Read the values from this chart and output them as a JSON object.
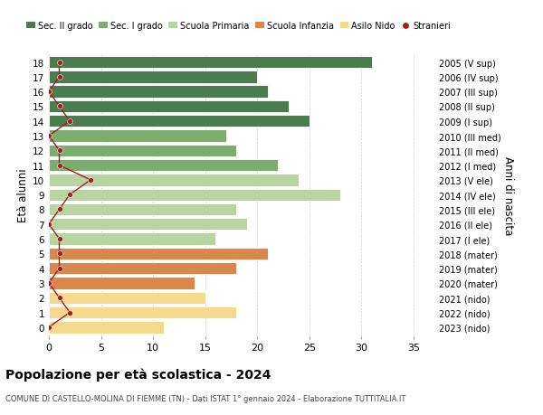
{
  "ages": [
    18,
    17,
    16,
    15,
    14,
    13,
    12,
    11,
    10,
    9,
    8,
    7,
    6,
    5,
    4,
    3,
    2,
    1,
    0
  ],
  "bar_values": [
    31,
    20,
    21,
    23,
    25,
    17,
    18,
    22,
    24,
    28,
    18,
    19,
    16,
    21,
    18,
    14,
    15,
    18,
    11
  ],
  "right_labels": [
    "2005 (V sup)",
    "2006 (IV sup)",
    "2007 (III sup)",
    "2008 (II sup)",
    "2009 (I sup)",
    "2010 (III med)",
    "2011 (II med)",
    "2012 (I med)",
    "2013 (V ele)",
    "2014 (IV ele)",
    "2015 (III ele)",
    "2016 (II ele)",
    "2017 (I ele)",
    "2018 (mater)",
    "2019 (mater)",
    "2020 (mater)",
    "2021 (nido)",
    "2022 (nido)",
    "2023 (nido)"
  ],
  "bar_colors": [
    "#4a7c4e",
    "#4a7c4e",
    "#4a7c4e",
    "#4a7c4e",
    "#4a7c4e",
    "#7aad6e",
    "#7aad6e",
    "#7aad6e",
    "#b8d4a0",
    "#b8d4a0",
    "#b8d4a0",
    "#b8d4a0",
    "#b8d4a0",
    "#d9874a",
    "#d9874a",
    "#d9874a",
    "#f5d98c",
    "#f5d98c",
    "#f5d98c"
  ],
  "legend_labels": [
    "Sec. II grado",
    "Sec. I grado",
    "Scuola Primaria",
    "Scuola Infanzia",
    "Asilo Nido",
    "Stranieri"
  ],
  "legend_colors": [
    "#4a7c4e",
    "#7aad6e",
    "#b8d4a0",
    "#d9874a",
    "#f5d98c",
    "#a02020"
  ],
  "ylabel": "Età alunni",
  "ylabel_right": "Anni di nascita",
  "title": "Popolazione per età scolastica - 2024",
  "subtitle": "COMUNE DI CASTELLO-MOLINA DI FIEMME (TN) - Dati ISTAT 1° gennaio 2024 - Elaborazione TUTTITALIA.IT",
  "xlim": [
    0,
    37
  ],
  "xticks": [
    0,
    5,
    10,
    15,
    20,
    25,
    30,
    35
  ],
  "background_color": "#ffffff",
  "grid_color": "#cccccc",
  "stranieri_color": "#a02020",
  "stranieri_x_values": [
    1,
    1,
    0,
    1,
    2,
    0,
    1,
    1,
    4,
    2,
    1,
    0,
    1,
    1,
    1,
    0,
    1,
    2,
    0
  ]
}
